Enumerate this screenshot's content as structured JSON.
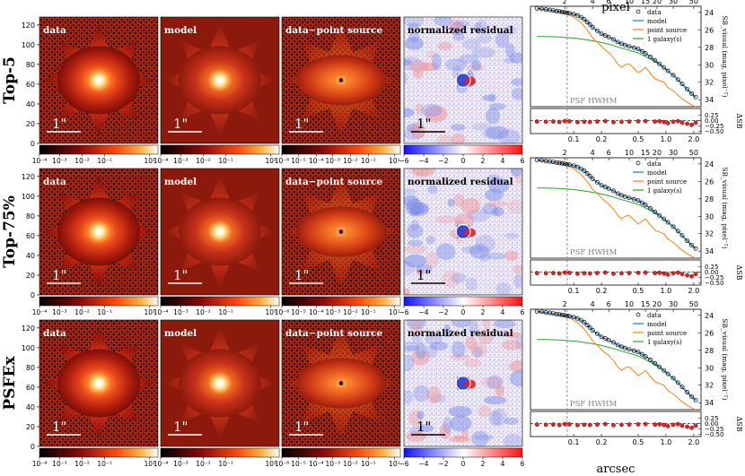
{
  "chart_data": {
    "type": "composite",
    "rows": [
      {
        "name": "Top-5"
      },
      {
        "name": "Top-75%"
      },
      {
        "name": "PSFEx"
      }
    ],
    "panels": [
      {
        "title": "data",
        "kind": "image"
      },
      {
        "title": "model",
        "kind": "image"
      },
      {
        "title": "data−point source",
        "kind": "image"
      },
      {
        "title": "normalized residual",
        "kind": "residual"
      }
    ],
    "scale_bar_label": "1\"",
    "image_yaxis": {
      "ticks": [
        "0",
        "20",
        "40",
        "60",
        "80",
        "100",
        "120"
      ],
      "range": [
        0,
        128
      ]
    },
    "colorbars": [
      {
        "ticks": [
          "10⁻⁴",
          "10⁻³",
          "10⁻²",
          "10⁻¹",
          "10¹"
        ],
        "positions": [
          0.0,
          0.17,
          0.36,
          0.55,
          0.93
        ]
      },
      {
        "ticks": [
          "10⁻⁴",
          "10⁻³",
          "10⁻²",
          "10⁻¹",
          "10¹"
        ],
        "positions": [
          0.0,
          0.17,
          0.36,
          0.55,
          0.93
        ]
      },
      {
        "ticks": [
          "10⁻⁶",
          "10⁻⁵",
          "10⁻⁴",
          "10⁻³",
          "10⁻²",
          "10⁻¹",
          "10¹"
        ],
        "positions": [
          0.0,
          0.14,
          0.29,
          0.43,
          0.58,
          0.73,
          0.95
        ]
      },
      {
        "ticks": [
          "−6",
          "−4",
          "−2",
          "0",
          "2",
          "4",
          "6"
        ],
        "positions": [
          0.0,
          0.167,
          0.333,
          0.5,
          0.667,
          0.833,
          1.0
        ]
      }
    ],
    "profile": {
      "x_label": "arcsec",
      "x_top_label": "pixel",
      "x_ticks": [
        "0.1",
        "0.2",
        "0.5",
        "1.0",
        "2.0"
      ],
      "x_tick_values": [
        0.1,
        0.2,
        0.5,
        1.0,
        2.0
      ],
      "x_top_ticks": [
        "2",
        "4",
        "6",
        "10",
        "15",
        "20",
        "30",
        "50"
      ],
      "x_top_tick_values": [
        2,
        4,
        6,
        10,
        15,
        20,
        30,
        50
      ],
      "pixel_scale": 0.04,
      "xlim": [
        0.034,
        2.4
      ],
      "y_label": "SB_visual (mag, pixel⁻²)",
      "y_ticks": [
        "24",
        "26",
        "28",
        "30",
        "32",
        "34"
      ],
      "y_tick_values": [
        24,
        26,
        28,
        30,
        32,
        34
      ],
      "ylim": [
        23.3,
        34.8
      ],
      "dsb_label": "ΔSB",
      "dsb_ticks": [
        "0.25",
        "0.00",
        "−0.25",
        "−0.50"
      ],
      "dsb_tick_values": [
        0.25,
        0.0,
        -0.25,
        -0.5
      ],
      "dsb_ylim": [
        -0.6,
        0.55
      ],
      "psf_hwhm_label": "PSF HWHM",
      "psf_hwhm_arcsec": 0.085,
      "legend": [
        "data",
        "model",
        "point source",
        "1 galaxy(s)"
      ],
      "colors": {
        "model": "#1f77b4",
        "point_source": "#ff7f0e",
        "galaxy": "#2ca02c",
        "residual_points": "#d62728"
      },
      "x": [
        0.04,
        0.045,
        0.05,
        0.055,
        0.06,
        0.065,
        0.07,
        0.075,
        0.08,
        0.085,
        0.09,
        0.1,
        0.11,
        0.12,
        0.13,
        0.14,
        0.15,
        0.16,
        0.18,
        0.2,
        0.22,
        0.24,
        0.27,
        0.3,
        0.33,
        0.36,
        0.4,
        0.45,
        0.5,
        0.55,
        0.6,
        0.68,
        0.76,
        0.85,
        0.95,
        1.05,
        1.2,
        1.35,
        1.5,
        1.7,
        1.9,
        2.1
      ],
      "sb_data": [
        23.55,
        23.6,
        23.67,
        23.72,
        23.78,
        23.85,
        23.9,
        23.95,
        24.0,
        24.05,
        24.1,
        24.2,
        24.35,
        24.55,
        24.8,
        25.1,
        25.4,
        25.7,
        26.1,
        26.45,
        26.65,
        26.85,
        27.1,
        27.4,
        27.6,
        27.75,
        27.9,
        28.05,
        28.2,
        28.45,
        28.7,
        29.1,
        29.5,
        29.9,
        30.3,
        30.7,
        31.2,
        31.7,
        32.2,
        32.8,
        33.3,
        33.7
      ],
      "sb_model": [
        23.55,
        23.61,
        23.67,
        23.73,
        23.79,
        23.85,
        23.9,
        23.95,
        24.0,
        24.05,
        24.1,
        24.2,
        24.35,
        24.55,
        24.8,
        25.1,
        25.4,
        25.7,
        26.1,
        26.45,
        26.65,
        26.85,
        27.1,
        27.4,
        27.6,
        27.75,
        27.9,
        28.05,
        28.2,
        28.45,
        28.7,
        29.1,
        29.5,
        29.9,
        30.3,
        30.7,
        31.2,
        31.7,
        32.2,
        32.8,
        33.3,
        33.7
      ],
      "sb_point": [
        23.6,
        23.66,
        23.72,
        23.78,
        23.85,
        23.92,
        23.98,
        24.05,
        24.12,
        24.2,
        24.3,
        24.55,
        24.85,
        25.2,
        25.6,
        26.0,
        26.45,
        26.9,
        27.4,
        27.9,
        28.3,
        28.6,
        29.2,
        29.9,
        30.3,
        30.0,
        29.9,
        30.4,
        30.9,
        30.6,
        30.3,
        31.0,
        31.6,
        31.8,
        32.0,
        32.6,
        33.0,
        33.5,
        33.9,
        34.3,
        34.6,
        34.8
      ],
      "sb_galaxy": [
        26.75,
        26.76,
        26.77,
        26.78,
        26.79,
        26.8,
        26.82,
        26.84,
        26.86,
        26.88,
        26.9,
        26.95,
        27.0,
        27.05,
        27.1,
        27.15,
        27.2,
        27.25,
        27.35,
        27.45,
        27.55,
        27.65,
        27.8,
        27.95,
        28.1,
        28.2,
        28.35,
        28.5,
        28.65,
        28.85,
        29.05,
        29.35,
        29.65,
        29.95,
        30.35,
        30.75,
        31.25,
        31.75,
        32.25,
        32.85,
        33.35,
        33.75
      ],
      "dsb_values": [
        -0.05,
        -0.04,
        -0.06,
        -0.03,
        -0.05,
        -0.04,
        -0.07,
        -0.05,
        -0.03,
        -0.06,
        -0.04,
        -0.05,
        -0.08,
        -0.04,
        -0.06,
        -0.03,
        -0.07,
        -0.04,
        -0.05,
        -0.06,
        -0.03,
        -0.05,
        -0.08,
        -0.04,
        -0.06,
        -0.02,
        -0.05,
        -0.07,
        -0.04,
        -0.06,
        -0.03,
        -0.09,
        -0.05,
        -0.04,
        -0.07,
        -0.12,
        -0.06,
        -0.03,
        -0.1,
        -0.15,
        -0.2,
        -0.1
      ]
    }
  }
}
